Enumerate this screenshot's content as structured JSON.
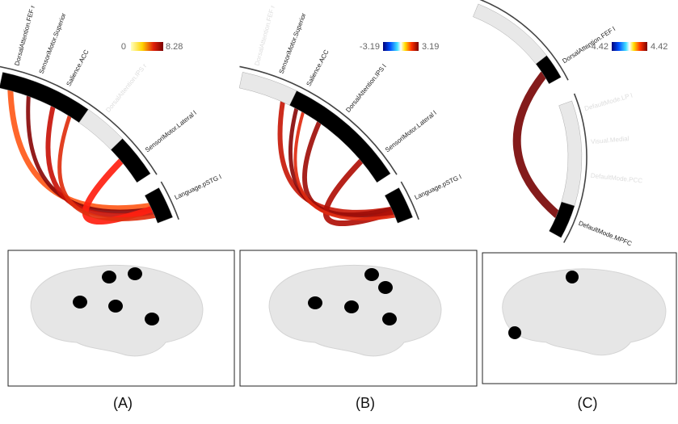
{
  "panels": [
    {
      "colorbar": {
        "min": "0",
        "max": "8.28"
      },
      "regions": [
        "DorsalAttention.FEF r",
        "SensoriMotor.Superior",
        "Salience.ACC",
        "DorsalAttention.IPS r",
        "SensoriMotor.Lateral l",
        "Language.pSTG l"
      ],
      "caption": "(A)"
    },
    {
      "colorbar": {
        "min": "-3.19",
        "max": "3.19"
      },
      "regions": [
        "DorsalAttention.FEF r",
        "SensoriMotor.Superior",
        "Salience.ACC",
        "DorsalAttention.IPS l",
        "SensoriMotor.Lateral l",
        "Language.pSTG l"
      ],
      "caption": "(B)"
    },
    {
      "colorbar": {
        "min": "-4.42",
        "max": "4.42"
      },
      "regions": [
        "DorsalAttention.FEF l",
        "DefaultMode.LP l",
        "Visual.Medial",
        "DefaultMode.PCC",
        "DefaultMode.MPFC"
      ],
      "caption": "(C)"
    }
  ]
}
